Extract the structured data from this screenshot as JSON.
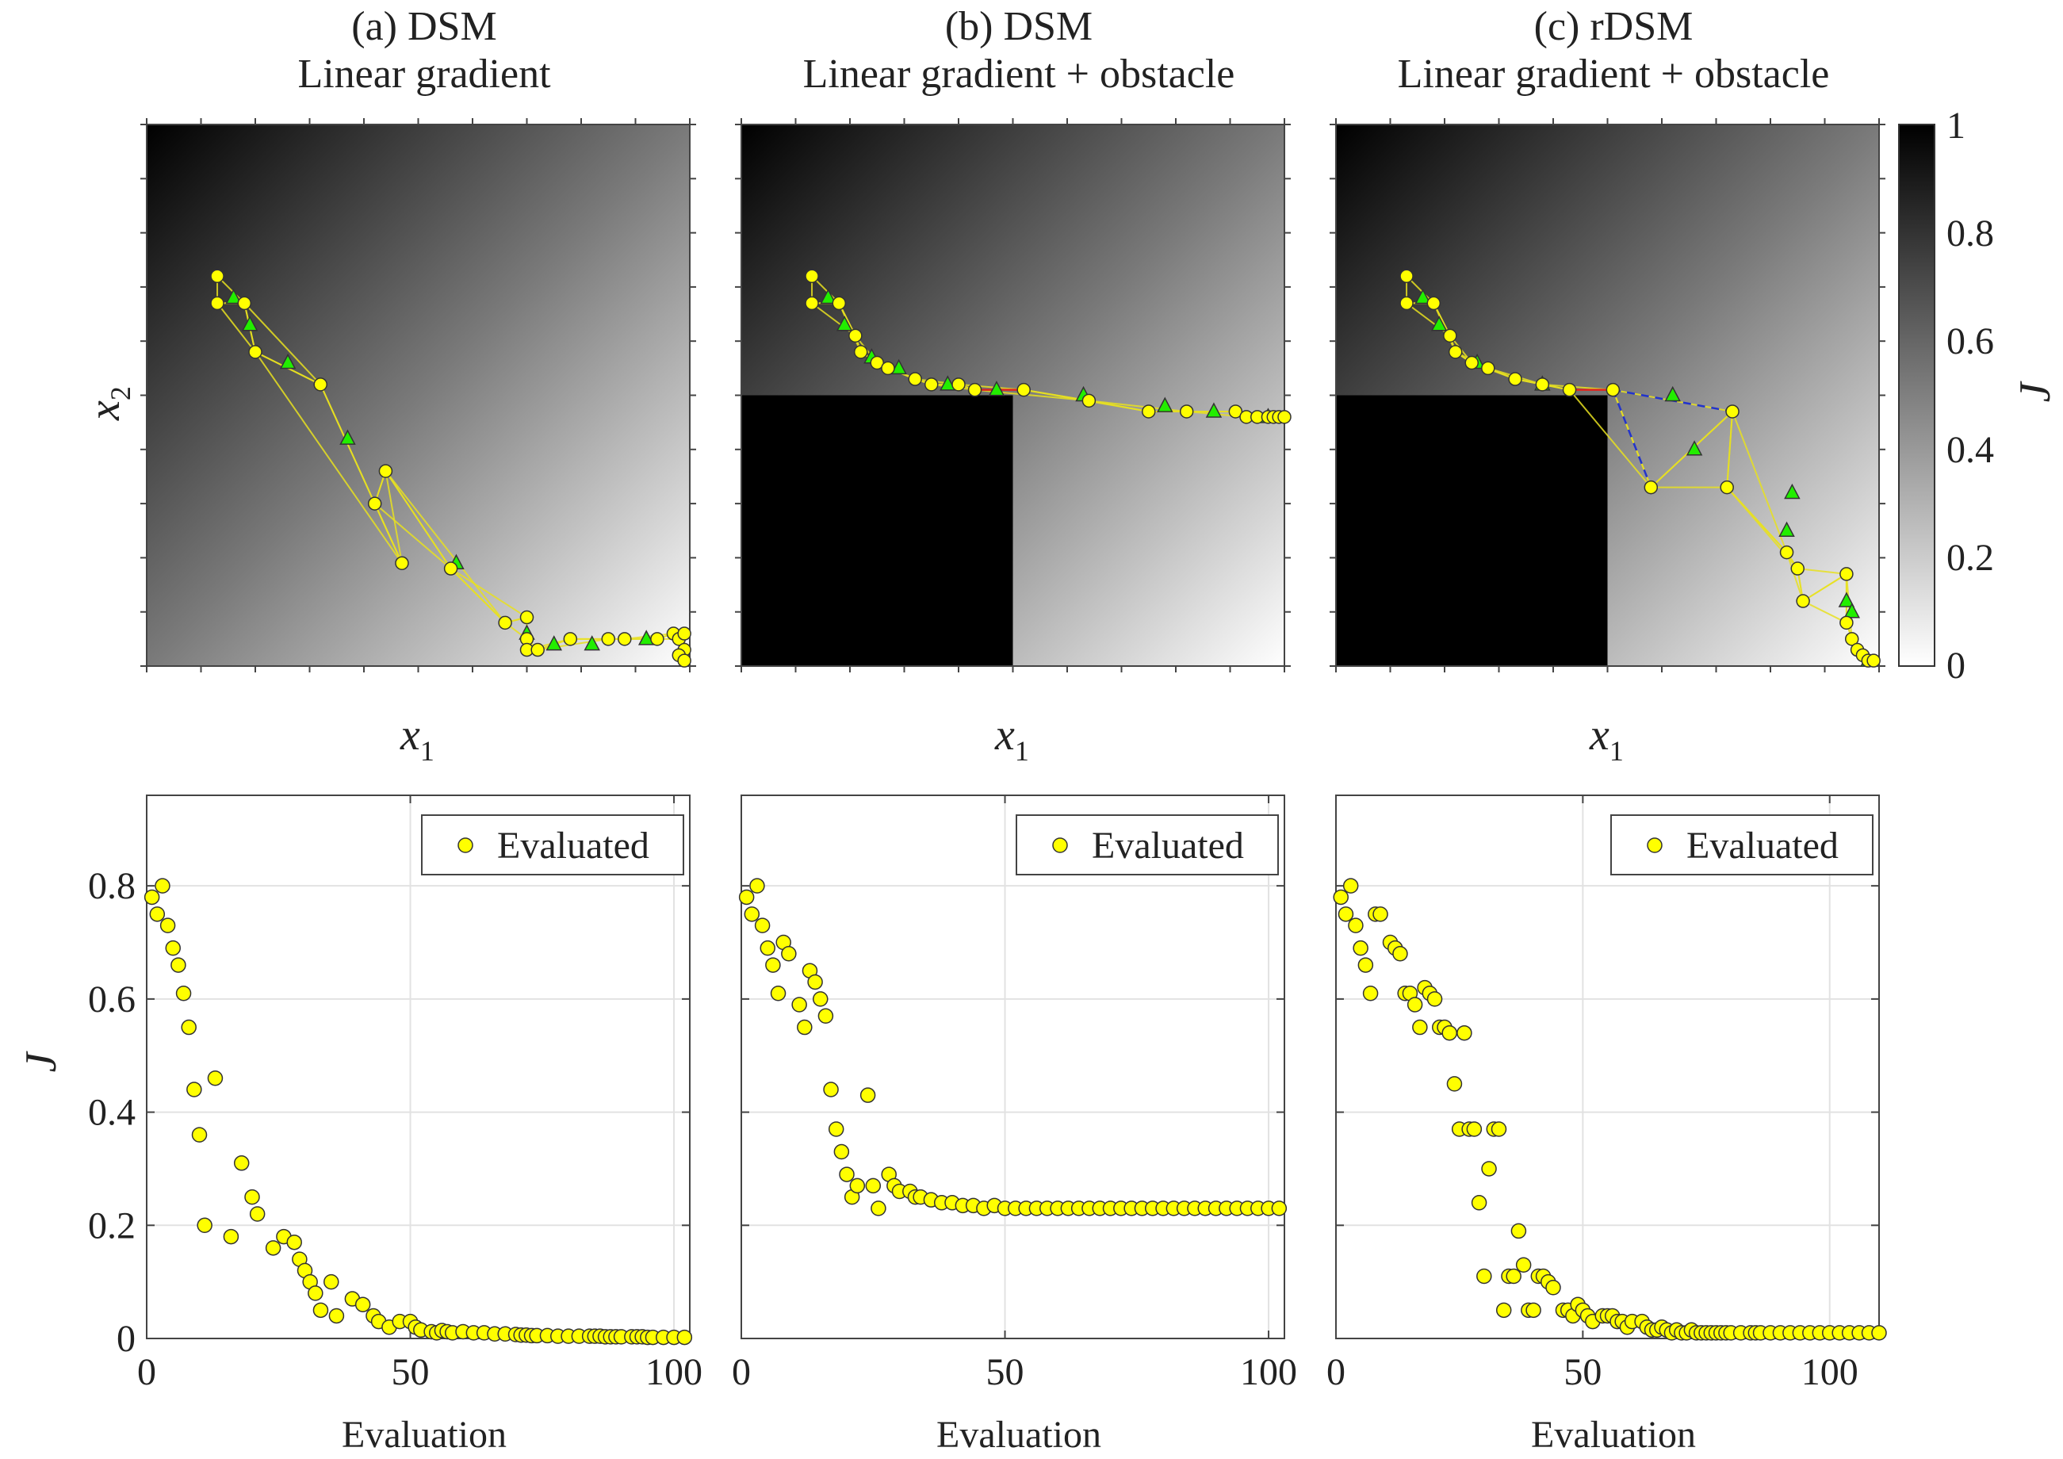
{
  "chart_data": [
    {
      "type": "scatter",
      "panel": "top-a",
      "title_line1": "(a) DSM",
      "title_line2": "Linear gradient",
      "xlabel": "x",
      "xlabel_sub": "1",
      "ylabel": "x",
      "ylabel_sub": "2",
      "background": "linear gradient, J decreasing toward bottom-right",
      "obstacle": false,
      "evaluated": [
        [
          0.13,
          0.72
        ],
        [
          0.13,
          0.67
        ],
        [
          0.18,
          0.67
        ],
        [
          0.2,
          0.58
        ],
        [
          0.32,
          0.52
        ],
        [
          0.47,
          0.19
        ],
        [
          0.42,
          0.3
        ],
        [
          0.44,
          0.36
        ],
        [
          0.56,
          0.18
        ],
        [
          0.66,
          0.08
        ],
        [
          0.7,
          0.09
        ],
        [
          0.7,
          0.05
        ],
        [
          0.7,
          0.03
        ],
        [
          0.72,
          0.03
        ],
        [
          0.78,
          0.05
        ],
        [
          0.85,
          0.05
        ],
        [
          0.88,
          0.05
        ],
        [
          0.94,
          0.05
        ],
        [
          0.97,
          0.06
        ],
        [
          0.98,
          0.05
        ],
        [
          0.99,
          0.06
        ],
        [
          0.99,
          0.03
        ],
        [
          0.98,
          0.02
        ],
        [
          0.99,
          0.01
        ]
      ],
      "simplex_centroids": [
        [
          0.16,
          0.68
        ],
        [
          0.19,
          0.63
        ],
        [
          0.26,
          0.56
        ],
        [
          0.37,
          0.42
        ],
        [
          0.57,
          0.19
        ],
        [
          0.7,
          0.06
        ],
        [
          0.75,
          0.04
        ],
        [
          0.82,
          0.04
        ],
        [
          0.92,
          0.05
        ]
      ]
    },
    {
      "type": "scatter",
      "panel": "top-b",
      "title_line1": "(b) DSM",
      "title_line2": "Linear gradient + obstacle",
      "xlabel": "x",
      "xlabel_sub": "1",
      "background": "linear gradient with black obstacle in lower-left region",
      "obstacle": true,
      "evaluated": [
        [
          0.13,
          0.72
        ],
        [
          0.13,
          0.67
        ],
        [
          0.18,
          0.67
        ],
        [
          0.21,
          0.61
        ],
        [
          0.22,
          0.58
        ],
        [
          0.25,
          0.56
        ],
        [
          0.27,
          0.55
        ],
        [
          0.32,
          0.53
        ],
        [
          0.35,
          0.52
        ],
        [
          0.4,
          0.52
        ],
        [
          0.43,
          0.51
        ],
        [
          0.52,
          0.51
        ],
        [
          0.64,
          0.49
        ],
        [
          0.75,
          0.47
        ],
        [
          0.82,
          0.47
        ],
        [
          0.91,
          0.47
        ],
        [
          0.93,
          0.46
        ],
        [
          0.95,
          0.46
        ],
        [
          0.97,
          0.46
        ],
        [
          0.98,
          0.46
        ],
        [
          0.99,
          0.46
        ],
        [
          1.0,
          0.46
        ]
      ],
      "simplex_centroids": [
        [
          0.16,
          0.68
        ],
        [
          0.19,
          0.63
        ],
        [
          0.24,
          0.57
        ],
        [
          0.29,
          0.55
        ],
        [
          0.38,
          0.52
        ],
        [
          0.47,
          0.51
        ],
        [
          0.63,
          0.5
        ],
        [
          0.78,
          0.48
        ],
        [
          0.87,
          0.47
        ],
        [
          0.97,
          0.46
        ]
      ]
    },
    {
      "type": "scatter",
      "panel": "top-c",
      "title_line1": "(c) rDSM",
      "title_line2": "Linear gradient + obstacle",
      "xlabel": "x",
      "xlabel_sub": "1",
      "background": "linear gradient with black obstacle in lower-left region",
      "obstacle": true,
      "evaluated": [
        [
          0.13,
          0.72
        ],
        [
          0.13,
          0.67
        ],
        [
          0.18,
          0.67
        ],
        [
          0.21,
          0.61
        ],
        [
          0.22,
          0.58
        ],
        [
          0.25,
          0.56
        ],
        [
          0.28,
          0.55
        ],
        [
          0.33,
          0.53
        ],
        [
          0.38,
          0.52
        ],
        [
          0.43,
          0.51
        ],
        [
          0.51,
          0.51
        ],
        [
          0.58,
          0.33
        ],
        [
          0.73,
          0.47
        ],
        [
          0.72,
          0.33
        ],
        [
          0.83,
          0.21
        ],
        [
          0.85,
          0.18
        ],
        [
          0.86,
          0.12
        ],
        [
          0.94,
          0.17
        ],
        [
          0.94,
          0.08
        ],
        [
          0.95,
          0.05
        ],
        [
          0.96,
          0.03
        ],
        [
          0.97,
          0.02
        ],
        [
          0.98,
          0.01
        ],
        [
          0.99,
          0.01
        ]
      ],
      "simplex_centroids": [
        [
          0.16,
          0.68
        ],
        [
          0.19,
          0.63
        ],
        [
          0.26,
          0.56
        ],
        [
          0.38,
          0.52
        ],
        [
          0.62,
          0.5
        ],
        [
          0.66,
          0.4
        ],
        [
          0.84,
          0.32
        ],
        [
          0.83,
          0.25
        ],
        [
          0.94,
          0.12
        ],
        [
          0.95,
          0.1
        ],
        [
          0.98,
          0.01
        ]
      ]
    },
    {
      "type": "scatter",
      "panel": "bottom-a",
      "xlabel": "Evaluation",
      "ylabel": "J",
      "xlim": [
        0,
        103
      ],
      "ylim": [
        0,
        0.96
      ],
      "xticks": [
        "0",
        "50",
        "100"
      ],
      "yticks": [
        "0",
        "0.2",
        "0.4",
        "0.6",
        "0.8"
      ],
      "grid": true,
      "legend": "top-right",
      "series": [
        {
          "name": "Evaluated",
          "x": [
            1,
            2,
            3,
            4,
            5,
            6,
            7,
            8,
            9,
            10,
            11,
            13,
            16,
            18,
            20,
            21,
            24,
            26,
            28,
            29,
            30,
            31,
            32,
            33,
            35,
            36,
            39,
            41,
            43,
            44,
            46,
            48,
            50,
            51,
            52,
            54,
            55,
            56,
            57,
            58,
            60,
            62,
            64,
            66,
            68,
            70,
            71,
            72,
            73,
            74,
            76,
            78,
            80,
            82,
            84,
            85,
            86,
            87,
            88,
            89,
            90,
            92,
            93,
            94,
            95,
            96,
            98,
            100,
            102
          ],
          "values": [
            0.78,
            0.75,
            0.8,
            0.73,
            0.69,
            0.66,
            0.61,
            0.55,
            0.44,
            0.36,
            0.2,
            0.46,
            0.18,
            0.31,
            0.25,
            0.22,
            0.16,
            0.18,
            0.17,
            0.14,
            0.12,
            0.1,
            0.08,
            0.05,
            0.1,
            0.04,
            0.07,
            0.06,
            0.04,
            0.03,
            0.02,
            0.03,
            0.03,
            0.02,
            0.015,
            0.012,
            0.01,
            0.014,
            0.012,
            0.01,
            0.012,
            0.01,
            0.01,
            0.008,
            0.008,
            0.007,
            0.006,
            0.006,
            0.005,
            0.005,
            0.005,
            0.004,
            0.004,
            0.004,
            0.004,
            0.004,
            0.004,
            0.003,
            0.003,
            0.003,
            0.003,
            0.003,
            0.003,
            0.003,
            0.002,
            0.002,
            0.002,
            0.002,
            0.002
          ]
        }
      ]
    },
    {
      "type": "scatter",
      "panel": "bottom-b",
      "xlabel": "Evaluation",
      "xlim": [
        0,
        103
      ],
      "ylim": [
        0,
        0.96
      ],
      "xticks": [
        "0",
        "50",
        "100"
      ],
      "grid": true,
      "legend": "top-right",
      "series": [
        {
          "name": "Evaluated",
          "x": [
            1,
            2,
            3,
            4,
            5,
            6,
            7,
            8,
            9,
            11,
            12,
            13,
            14,
            15,
            16,
            17,
            18,
            19,
            20,
            21,
            22,
            24,
            25,
            26,
            28,
            29,
            30,
            32,
            33,
            34,
            36,
            38,
            40,
            42,
            44,
            46,
            48,
            50,
            52,
            54,
            56,
            58,
            60,
            62,
            64,
            66,
            68,
            70,
            72,
            74,
            76,
            78,
            80,
            82,
            84,
            86,
            88,
            90,
            92,
            94,
            96,
            98,
            100,
            102
          ],
          "values": [
            0.78,
            0.75,
            0.8,
            0.73,
            0.69,
            0.66,
            0.61,
            0.7,
            0.68,
            0.59,
            0.55,
            0.65,
            0.63,
            0.6,
            0.57,
            0.44,
            0.37,
            0.33,
            0.29,
            0.25,
            0.27,
            0.43,
            0.27,
            0.23,
            0.29,
            0.27,
            0.26,
            0.26,
            0.25,
            0.25,
            0.245,
            0.24,
            0.24,
            0.235,
            0.235,
            0.23,
            0.235,
            0.23,
            0.23,
            0.23,
            0.23,
            0.23,
            0.23,
            0.23,
            0.23,
            0.23,
            0.23,
            0.23,
            0.23,
            0.23,
            0.23,
            0.23,
            0.23,
            0.23,
            0.23,
            0.23,
            0.23,
            0.23,
            0.23,
            0.23,
            0.23,
            0.23,
            0.23,
            0.23
          ]
        }
      ]
    },
    {
      "type": "scatter",
      "panel": "bottom-c",
      "xlabel": "Evaluation",
      "xlim": [
        0,
        110
      ],
      "ylim": [
        0,
        0.96
      ],
      "xticks": [
        "0",
        "50",
        "100"
      ],
      "grid": true,
      "legend": "top-right",
      "series": [
        {
          "name": "Evaluated",
          "x": [
            1,
            2,
            3,
            4,
            5,
            6,
            7,
            8,
            9,
            11,
            12,
            13,
            14,
            15,
            16,
            17,
            18,
            19,
            20,
            21,
            22,
            23,
            24,
            25,
            26,
            27,
            28,
            29,
            30,
            31,
            32,
            33,
            34,
            35,
            36,
            37,
            38,
            39,
            40,
            41,
            42,
            43,
            44,
            46,
            47,
            48,
            49,
            50,
            51,
            52,
            54,
            55,
            56,
            57,
            58,
            59,
            60,
            62,
            63,
            64,
            65,
            66,
            67,
            68,
            69,
            70,
            71,
            72,
            73,
            74,
            75,
            76,
            77,
            78,
            79,
            80,
            82,
            84,
            85,
            86,
            88,
            90,
            92,
            94,
            96,
            98,
            100,
            102,
            104,
            106,
            108,
            110
          ],
          "values": [
            0.78,
            0.75,
            0.8,
            0.73,
            0.69,
            0.66,
            0.61,
            0.75,
            0.75,
            0.7,
            0.69,
            0.68,
            0.61,
            0.61,
            0.59,
            0.55,
            0.62,
            0.61,
            0.6,
            0.55,
            0.55,
            0.54,
            0.45,
            0.37,
            0.54,
            0.37,
            0.37,
            0.24,
            0.11,
            0.3,
            0.37,
            0.37,
            0.05,
            0.11,
            0.11,
            0.19,
            0.13,
            0.05,
            0.05,
            0.11,
            0.11,
            0.1,
            0.09,
            0.05,
            0.05,
            0.04,
            0.06,
            0.05,
            0.04,
            0.03,
            0.04,
            0.04,
            0.04,
            0.03,
            0.03,
            0.02,
            0.03,
            0.03,
            0.02,
            0.015,
            0.015,
            0.02,
            0.015,
            0.01,
            0.015,
            0.01,
            0.01,
            0.015,
            0.01,
            0.01,
            0.01,
            0.01,
            0.01,
            0.01,
            0.01,
            0.01,
            0.01,
            0.01,
            0.01,
            0.01,
            0.01,
            0.01,
            0.01,
            0.01,
            0.01,
            0.01,
            0.01,
            0.01,
            0.01,
            0.01,
            0.01,
            0.01
          ]
        }
      ]
    }
  ],
  "colorbar": {
    "label": "J",
    "ticks": [
      "0",
      "0.2",
      "0.4",
      "0.6",
      "0.8",
      "1"
    ],
    "values": [
      0,
      0.2,
      0.4,
      0.6,
      0.8,
      1
    ]
  },
  "colors": {
    "evaluated_fill": "#ffff00",
    "centroid_fill": "#22ee00",
    "edge": "#e8e020",
    "reflection": "#dd2222",
    "rdsm_path": "#2233cc"
  }
}
